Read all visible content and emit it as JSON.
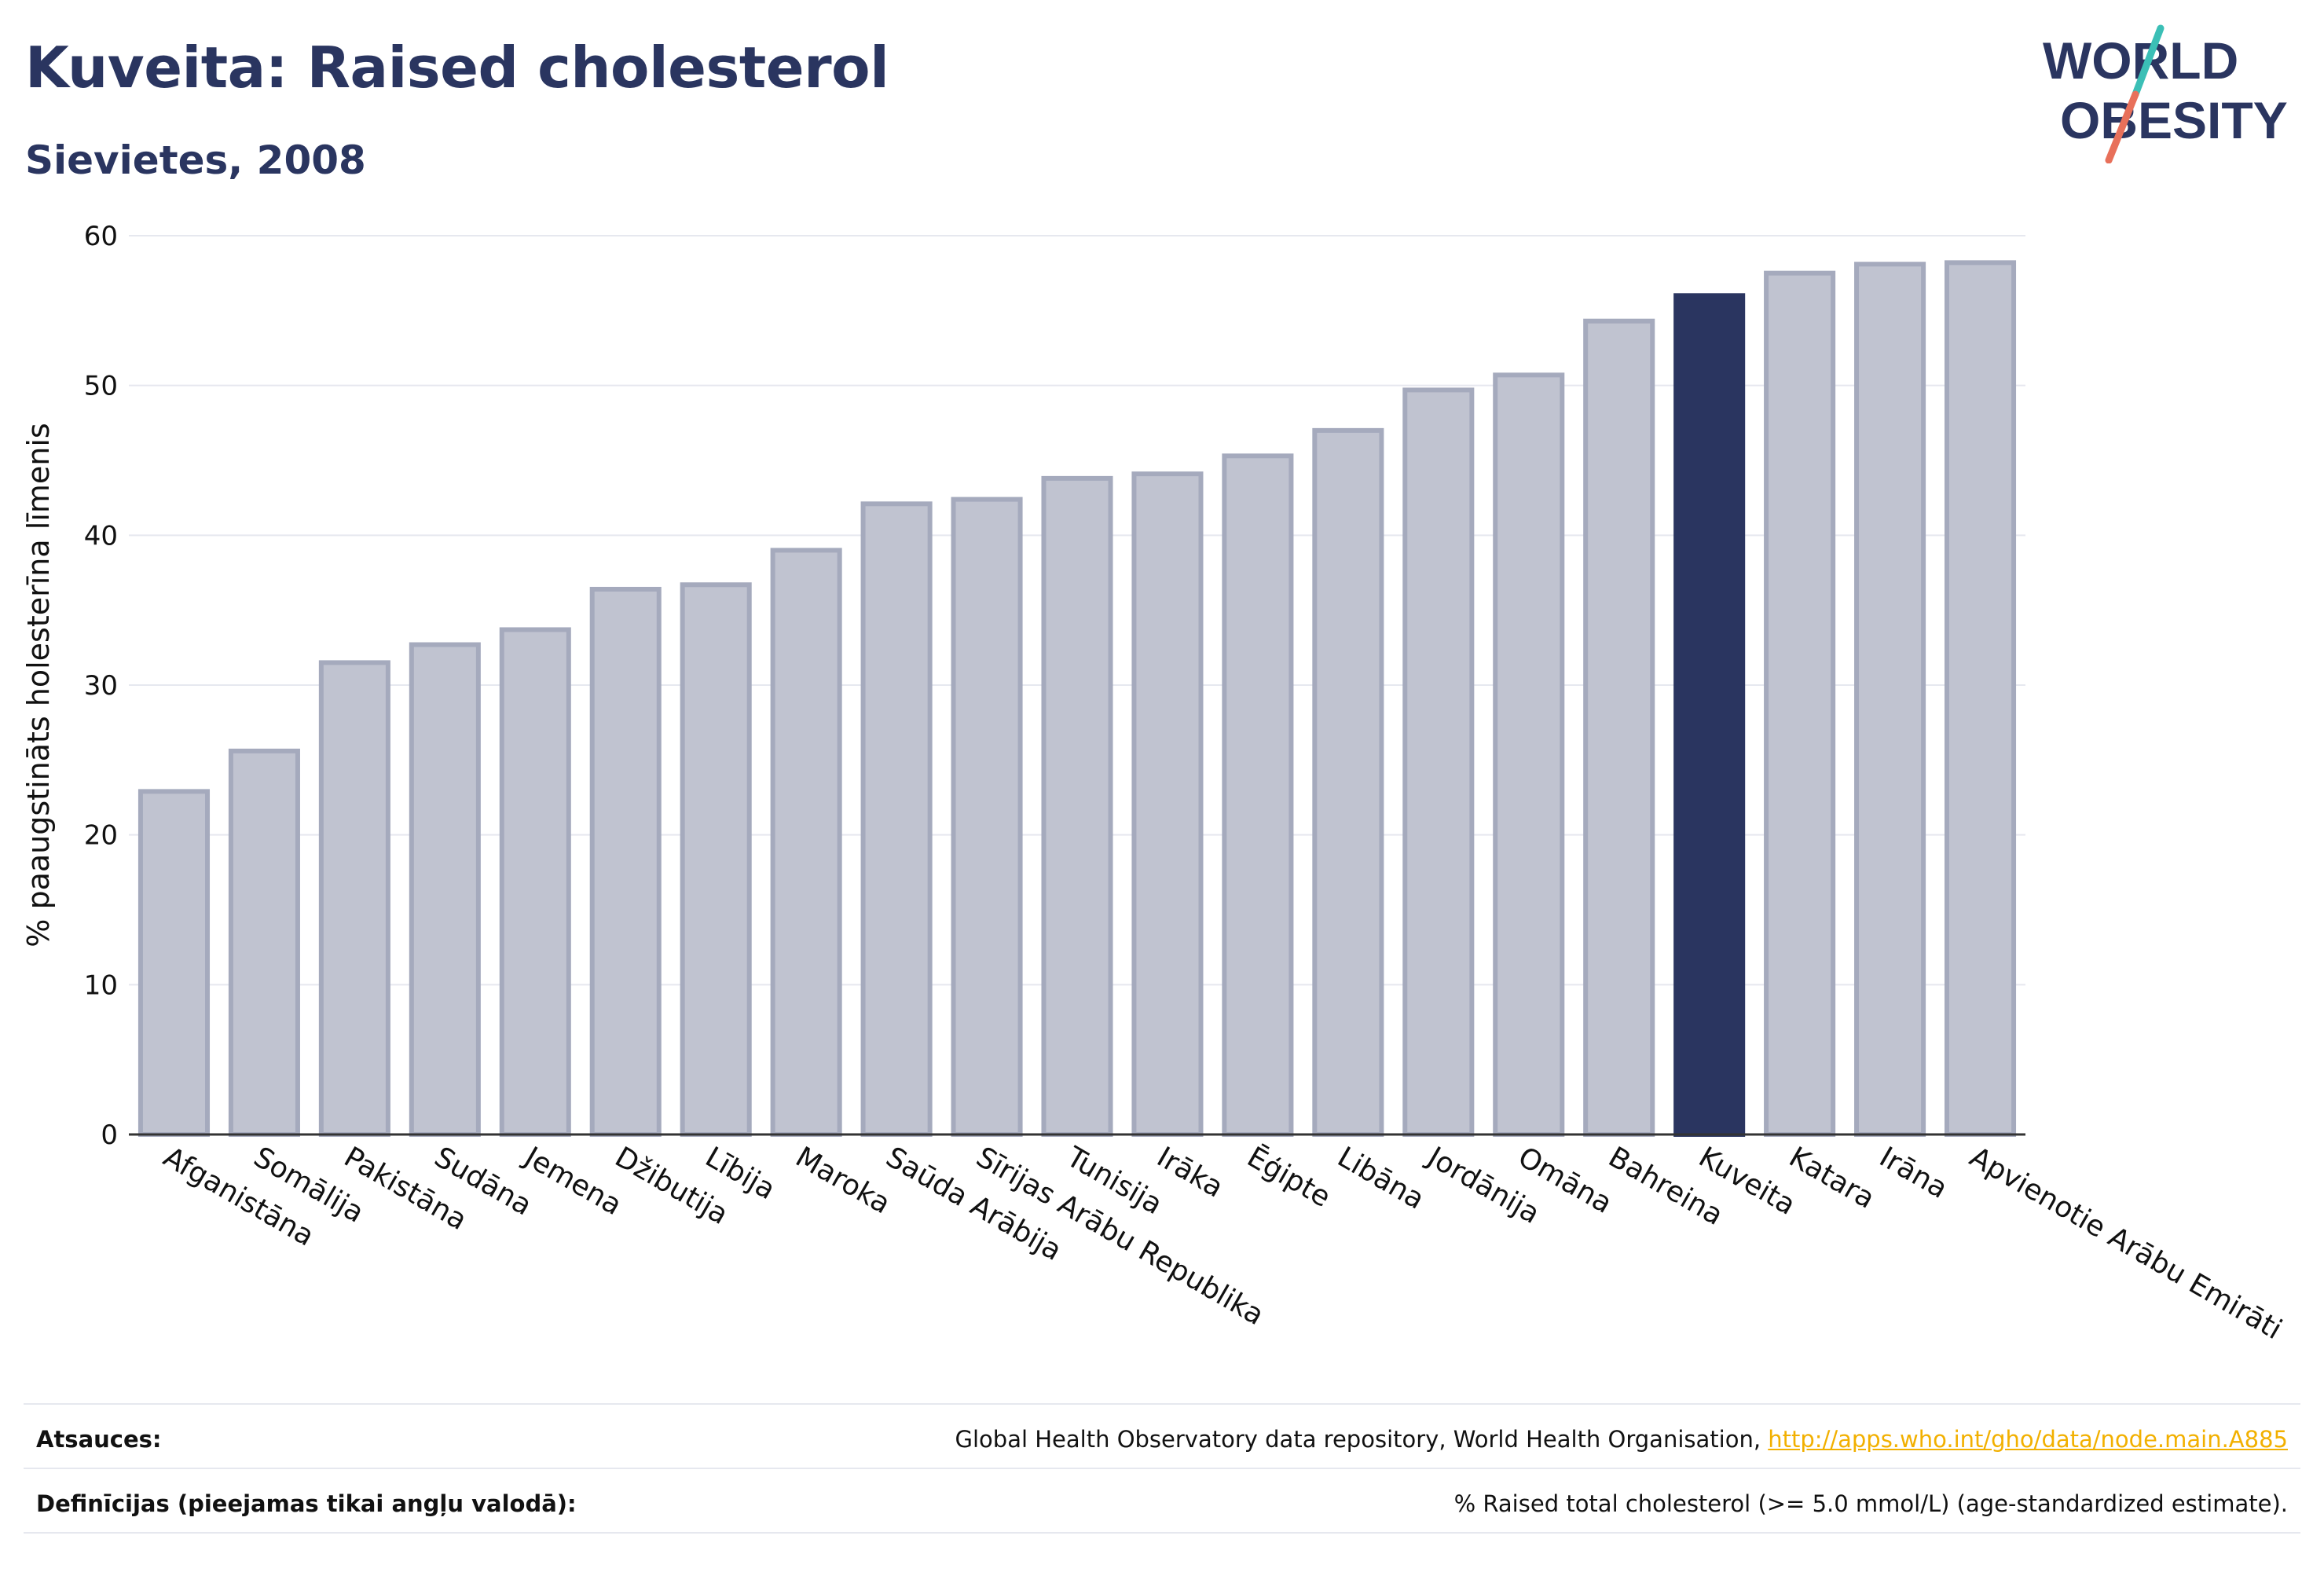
{
  "header": {
    "title": "Kuveita: Raised cholesterol",
    "subtitle": "Sievietes, 2008"
  },
  "logo": {
    "line1": "WORLD",
    "line2": "OBESITY",
    "colors": {
      "text": "#2a3560",
      "slash_top": "#3bbfb6",
      "slash_bottom": "#e8705a"
    }
  },
  "colors": {
    "bar_fill": "#c0c3d0",
    "bar_stroke": "#a5aabd",
    "highlight": "#2a3560",
    "grid": "#e6e8ef"
  },
  "chart_data": {
    "type": "bar",
    "ylabel": "% paaugstināts holesterīna līmenis",
    "xlabel": "",
    "ylim": [
      0,
      60
    ],
    "yticks": [
      0,
      10,
      20,
      30,
      40,
      50,
      60
    ],
    "grid": true,
    "highlight_category": "Kuveita",
    "categories": [
      "Afganistāna",
      "Somālija",
      "Pakistāna",
      "Sudāna",
      "Jemena",
      "Džibutija",
      "Lībija",
      "Maroka",
      "Saūda Arābija",
      "Sīrijas Arābu Republika",
      "Tunisija",
      "Irāka",
      "Ēģipte",
      "Libāna",
      "Jordānija",
      "Omāna",
      "Bahreina",
      "Kuveita",
      "Katara",
      "Irāna",
      "Apvienotie Arābu Emirāti"
    ],
    "values": [
      22.9,
      25.6,
      31.5,
      32.7,
      33.7,
      36.4,
      36.7,
      39.0,
      42.1,
      42.4,
      43.8,
      44.1,
      45.3,
      47.0,
      49.7,
      50.7,
      54.3,
      56.0,
      57.5,
      58.1,
      58.2
    ]
  },
  "footer": {
    "sources_label": "Atsauces:",
    "sources_text": "Global Health Observatory data repository, World Health Organisation,",
    "sources_link": "http://apps.who.int/gho/data/node.main.A885",
    "definitions_label": "Definīcijas (pieejamas tikai angļu valodā):",
    "definitions_text": "% Raised total cholesterol (>= 5.0 mmol/L) (age-standardized estimate)."
  }
}
